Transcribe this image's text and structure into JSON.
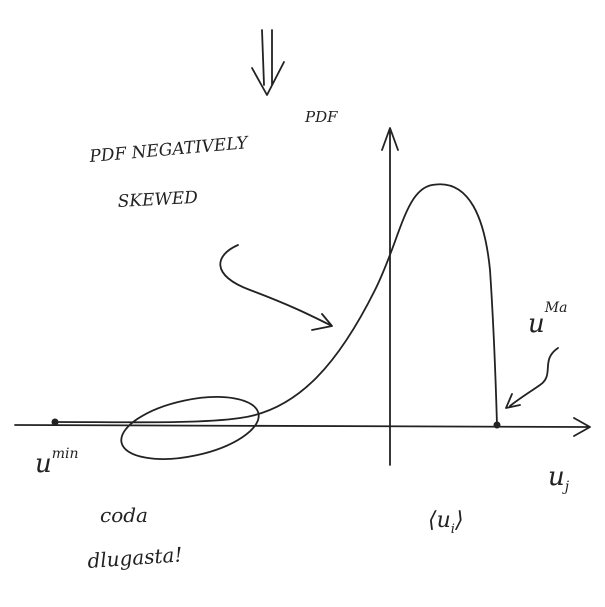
{
  "axes": {
    "y_label": "PDF",
    "x_label": {
      "base": "u",
      "sub": "j"
    }
  },
  "annotation": {
    "lines": [
      "PDF NEGATIVELY",
      "SKEWED"
    ]
  },
  "u_min": {
    "base": "u",
    "sup": "min"
  },
  "u_max": {
    "base": "u",
    "sup": "Ma"
  },
  "mean": {
    "base": "⟨u",
    "sub": "i",
    "close": "⟩"
  },
  "note": {
    "lines": [
      "coda",
      "dlugasta!"
    ]
  }
}
